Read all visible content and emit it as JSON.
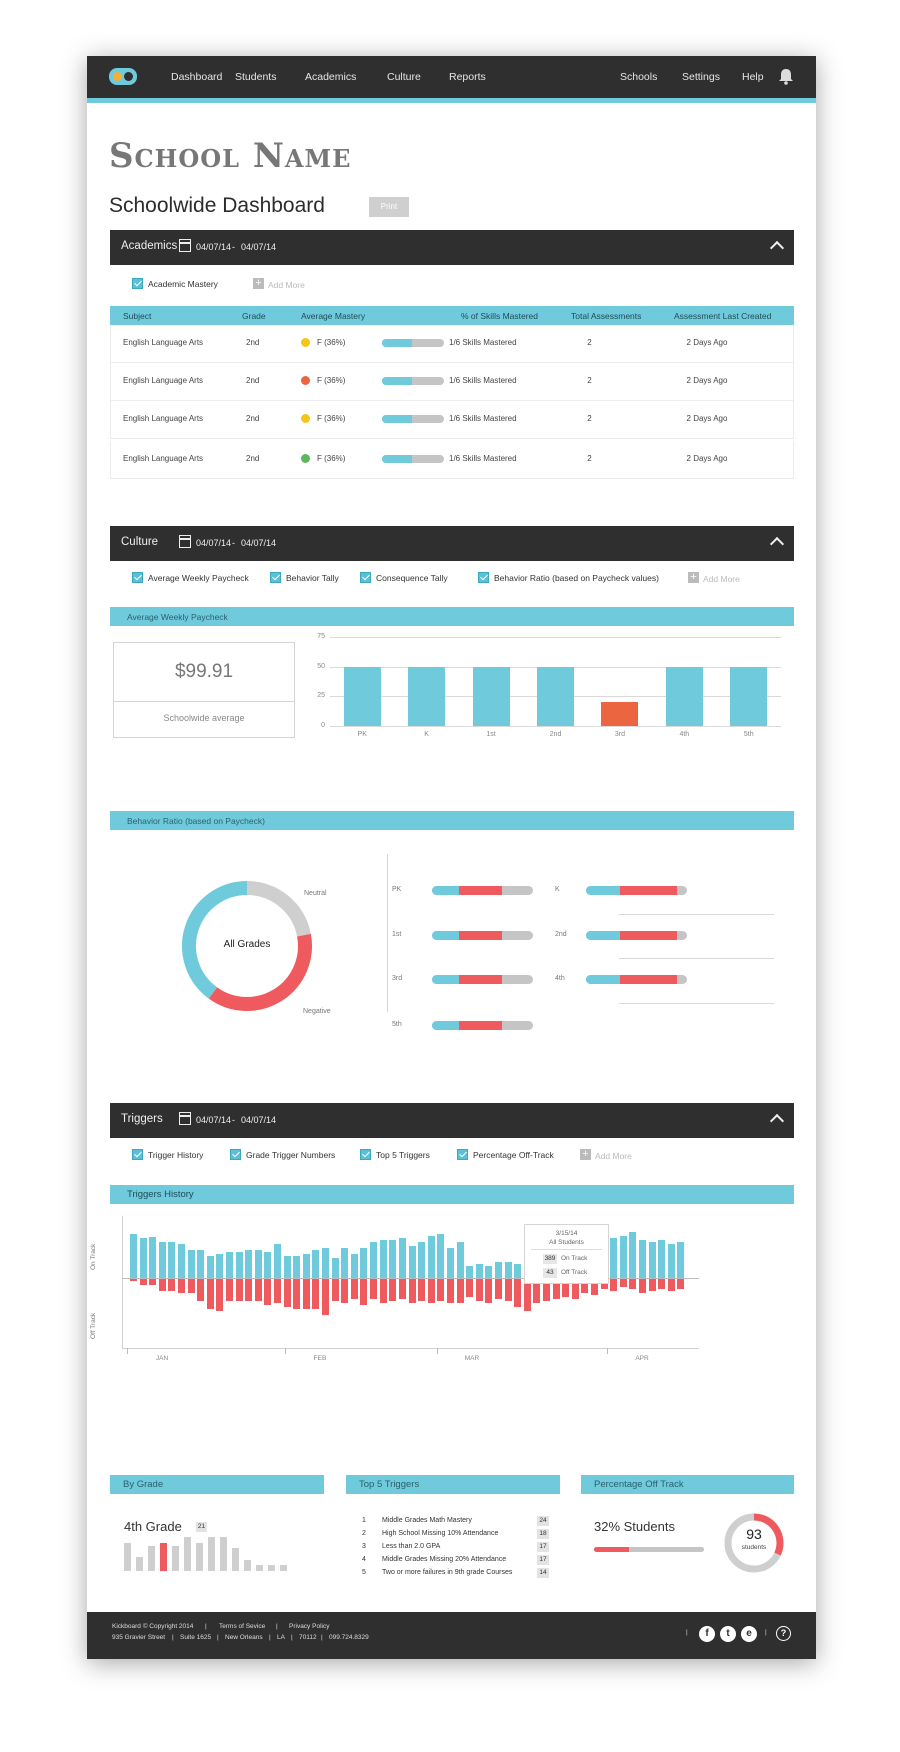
{
  "nav": {
    "logo": "Kickboard logo",
    "left": [
      "Dashboard",
      "Students",
      "Academics",
      "Culture",
      "Reports"
    ],
    "right": [
      "Schools",
      "Settings",
      "Help"
    ]
  },
  "header": {
    "school_name": "School Name",
    "title": "Schoolwide Dashboard",
    "print_label": "Print"
  },
  "academics": {
    "title": "Academics",
    "date_from": "04/07/14",
    "date_sep": "-",
    "date_to": "04/07/14",
    "filters": [
      "Academic Mastery"
    ],
    "add_more": "Add More",
    "columns": [
      "Subject",
      "Grade",
      "Average Mastery",
      "% of Skills Mastered",
      "Total Assessments",
      "Assessment Last Created"
    ],
    "rows": [
      {
        "subject": "English Language Arts",
        "grade": "2nd",
        "mastery": "F (36%)",
        "color": "#f5c518",
        "skills": "1/6 Skills Mastered",
        "progress": 0.48,
        "total": "2",
        "last": "2 Days Ago"
      },
      {
        "subject": "English Language Arts",
        "grade": "2nd",
        "mastery": "F (36%)",
        "color": "#ec6541",
        "skills": "1/6 Skills Mastered",
        "progress": 0.48,
        "total": "2",
        "last": "2 Days Ago"
      },
      {
        "subject": "English Language Arts",
        "grade": "2nd",
        "mastery": "F (36%)",
        "color": "#f5c518",
        "skills": "1/6 Skills Mastered",
        "progress": 0.48,
        "total": "2",
        "last": "2 Days Ago"
      },
      {
        "subject": "English Language Arts",
        "grade": "2nd",
        "mastery": "F (36%)",
        "color": "#5cb85c",
        "skills": "1/6 Skills Mastered",
        "progress": 0.48,
        "total": "2",
        "last": "2 Days Ago"
      }
    ]
  },
  "culture": {
    "title": "Culture",
    "date_from": "04/07/14",
    "date_sep": "-",
    "date_to": "04/07/14",
    "filters": [
      "Average Weekly Paycheck",
      "Behavior Tally",
      "Consequence Tally",
      "Behavior Ratio (based on Paycheck values)"
    ],
    "add_more": "Add More",
    "paycheck_title": "Average Weekly Paycheck",
    "avg_value": "$99.91",
    "avg_label": "Schoolwide average",
    "ratio_title": "Behavior Ratio (based on Paycheck)",
    "donut_center": "All Grades",
    "donut_neutral": "Neutral",
    "donut_negative": "Negative",
    "donut_shares": {
      "positive": 0.4,
      "negative": 0.38,
      "neutral": 0.22
    },
    "ratios": [
      {
        "grade": "PK",
        "pos": 0.27,
        "neg": 0.42
      },
      {
        "grade": "K",
        "pos": 0.34,
        "neg": 0.56
      },
      {
        "grade": "1st",
        "pos": 0.27,
        "neg": 0.42
      },
      {
        "grade": "2nd",
        "pos": 0.34,
        "neg": 0.56
      },
      {
        "grade": "3rd",
        "pos": 0.27,
        "neg": 0.42
      },
      {
        "grade": "4th",
        "pos": 0.34,
        "neg": 0.56
      },
      {
        "grade": "5th",
        "pos": 0.27,
        "neg": 0.42
      }
    ]
  },
  "chart_data": {
    "type": "bar",
    "categories": [
      "PK",
      "K",
      "1st",
      "2nd",
      "3rd",
      "4th",
      "5th"
    ],
    "values": [
      50,
      50,
      50,
      50,
      20,
      50,
      50
    ],
    "highlight_index": 4,
    "ylim": [
      0,
      75
    ],
    "yticks": [
      "0",
      "25",
      "50",
      "75"
    ],
    "colors": {
      "normal": "#6fcbdc",
      "highlight": "#ec6541"
    }
  },
  "triggers": {
    "title": "Triggers",
    "date_from": "04/07/14",
    "date_sep": "-",
    "date_to": "04/07/14",
    "filters": [
      "Trigger History",
      "Grade Trigger Numbers",
      "Top 5 Triggers",
      "Percentage Off-Track"
    ],
    "add_more": "Add More",
    "history_title": "Triggers History",
    "y_on": "On Track",
    "y_off": "Off Track",
    "months": [
      "JAN",
      "FEB",
      "MAR",
      "APR"
    ],
    "tooltip": {
      "date": "3/15/14",
      "scope": "All Students",
      "on": "389",
      "on_label": "On Track",
      "off": "43",
      "off_label": "Off Track"
    },
    "on_values": [
      44,
      40,
      41,
      36,
      36,
      34,
      28,
      28,
      22,
      24,
      26,
      26,
      28,
      28,
      26,
      34,
      22,
      22,
      24,
      28,
      30,
      20,
      30,
      24,
      30,
      36,
      38,
      38,
      40,
      32,
      36,
      42,
      44,
      30,
      36,
      12,
      14,
      12,
      16,
      16,
      14,
      12,
      16,
      22,
      22,
      22,
      30,
      34,
      36,
      36,
      40,
      42,
      46,
      38,
      36,
      38,
      34,
      36
    ],
    "off_values": [
      2,
      6,
      6,
      12,
      12,
      14,
      14,
      22,
      30,
      32,
      22,
      22,
      22,
      22,
      26,
      24,
      28,
      30,
      30,
      30,
      36,
      22,
      24,
      20,
      26,
      20,
      24,
      22,
      20,
      24,
      22,
      24,
      22,
      24,
      24,
      18,
      22,
      24,
      20,
      22,
      28,
      32,
      24,
      22,
      20,
      18,
      20,
      14,
      16,
      10,
      12,
      8,
      10,
      14,
      12,
      10,
      12,
      10
    ]
  },
  "by_grade": {
    "title": "By Grade",
    "grade": "4th Grade",
    "count": "21",
    "bars": [
      10,
      5,
      9,
      10,
      9,
      12,
      10,
      12,
      12,
      8,
      4,
      2,
      2,
      2
    ],
    "highlight_index": 3
  },
  "top5": {
    "title": "Top 5 Triggers",
    "items": [
      {
        "n": "1",
        "label": "Middle Grades Math Mastery",
        "count": "24"
      },
      {
        "n": "2",
        "label": "High School Missing 10% Attendance",
        "count": "18"
      },
      {
        "n": "3",
        "label": "Less than 2.0 GPA",
        "count": "17"
      },
      {
        "n": "4",
        "label": "Middle Grades Missing 20% Attendance",
        "count": "17"
      },
      {
        "n": "5",
        "label": "Two or more failures in 9th grade Courses",
        "count": "14"
      }
    ]
  },
  "off_track": {
    "title": "Percentage Off Track",
    "label": "32% Students",
    "percent": 0.32,
    "count": "93",
    "unit": "students"
  },
  "footer": {
    "line1": [
      "Kickboard © Copyright 2014",
      "Terms of Sevice",
      "Privacy Policy"
    ],
    "line2": [
      "935 Gravier Street",
      "Suite 1625",
      "New Orleans",
      "LA",
      "70112",
      "099.724.8329"
    ],
    "social": [
      "f",
      "t",
      "e"
    ],
    "help": "?"
  }
}
